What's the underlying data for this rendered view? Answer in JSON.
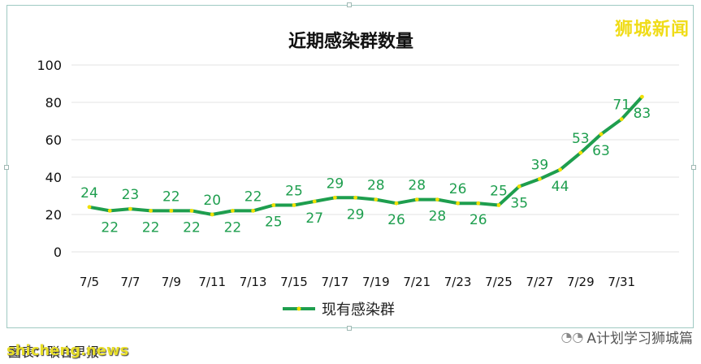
{
  "watermark_top": "狮城新闻",
  "watermark_left": "shicheng.news",
  "source_label": "图表：联合早报",
  "wechat_credit": "A计划学习狮城篇",
  "wechat_icon": "wechat-icon",
  "colors": {
    "line": "#1e9e4e",
    "marker": "#f0e000",
    "labels": "#1e9e4e"
  },
  "chart_data": {
    "type": "line",
    "title": "近期感染群数量",
    "xlabel": "",
    "ylabel": "",
    "ylim": [
      0,
      100
    ],
    "yticks": [
      0,
      20,
      40,
      60,
      80,
      100
    ],
    "grid": true,
    "legend_position": "bottom",
    "x": [
      "7/5",
      "7/6",
      "7/7",
      "7/8",
      "7/9",
      "7/10",
      "7/11",
      "7/12",
      "7/13",
      "7/14",
      "7/15",
      "7/16",
      "7/17",
      "7/18",
      "7/19",
      "7/20",
      "7/21",
      "7/22",
      "7/23",
      "7/24",
      "7/25",
      "7/26",
      "7/27",
      "7/28",
      "7/29",
      "7/30",
      "7/31",
      "8/1"
    ],
    "xtick_labels": [
      "7/5",
      "7/7",
      "7/9",
      "7/11",
      "7/13",
      "7/15",
      "7/17",
      "7/19",
      "7/21",
      "7/23",
      "7/25",
      "7/27",
      "7/29",
      "7/31"
    ],
    "series": [
      {
        "name": "现有感染群",
        "values": [
          24,
          22,
          23,
          22,
          22,
          22,
          20,
          22,
          22,
          25,
          25,
          27,
          29,
          29,
          28,
          26,
          28,
          28,
          26,
          26,
          25,
          35,
          39,
          44,
          53,
          63,
          71,
          83
        ]
      }
    ]
  }
}
